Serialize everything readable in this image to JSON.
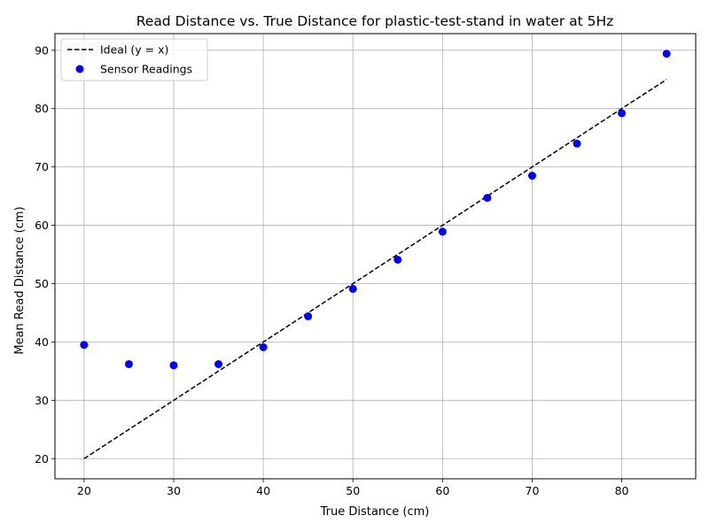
{
  "chart_data": {
    "type": "scatter",
    "title": "Read Distance vs. True Distance for plastic-test-stand in water at 5Hz",
    "xlabel": "True Distance (cm)",
    "ylabel": "Mean Read Distance (cm)",
    "xlim": [
      16.75,
      88.25
    ],
    "ylim": [
      16.55,
      92.85
    ],
    "xticks": [
      20,
      30,
      40,
      50,
      60,
      70,
      80
    ],
    "yticks": [
      20,
      30,
      40,
      50,
      60,
      70,
      80,
      90
    ],
    "grid": true,
    "legend_position": "top-left",
    "series": [
      {
        "name": "Ideal (y = x)",
        "kind": "line",
        "style": "dashed",
        "color": "#000000",
        "x": [
          20,
          85
        ],
        "y": [
          20,
          85
        ]
      },
      {
        "name": "Sensor Readings",
        "kind": "scatter",
        "color": "#0000ff",
        "x": [
          20,
          25,
          30,
          35,
          40,
          45,
          50,
          55,
          60,
          65,
          70,
          75,
          80,
          85
        ],
        "y": [
          39.5,
          36.2,
          36.0,
          36.2,
          39.1,
          44.4,
          49.1,
          54.1,
          58.9,
          64.7,
          68.5,
          74.0,
          79.2,
          89.4
        ]
      }
    ]
  }
}
